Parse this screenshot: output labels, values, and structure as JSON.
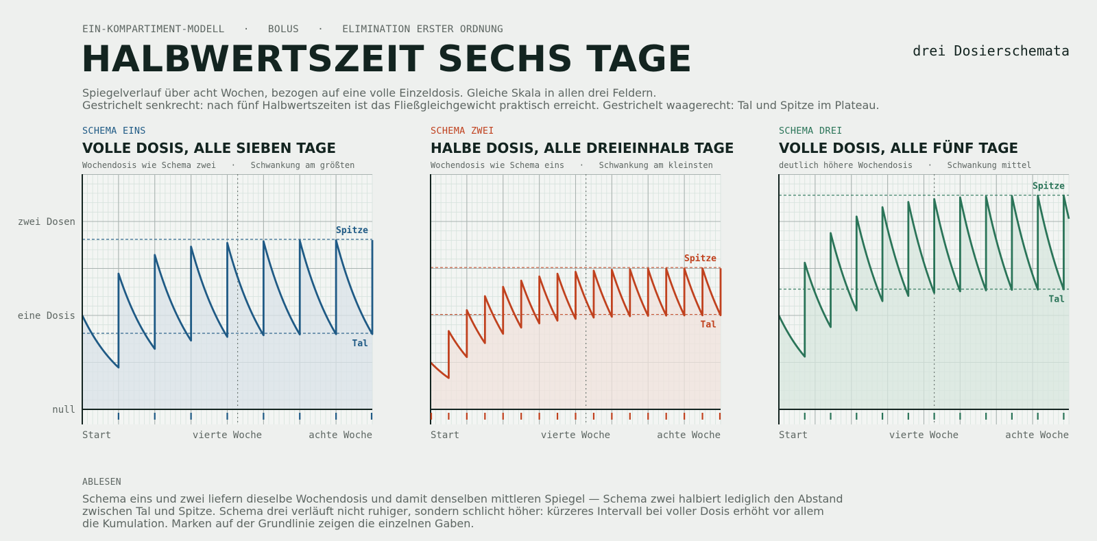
{
  "header": {
    "kicker": "EIN-KOMPARTIMENT-MODELL   ·   BOLUS   ·   ELIMINATION ERSTER ORDNUNG",
    "title": "HALBWERTSZEIT SECHS TAGE",
    "subtitle_right": "drei Dosierschemata",
    "intro_line1": "Spiegelverlauf über acht Wochen, bezogen auf eine volle Einzeldosis. Gleiche Skala in allen drei Feldern.",
    "intro_line2": "Gestrichelt senkrecht: nach fünf Halbwertszeiten ist das Fließgleichgewicht praktisch erreicht.  Gestrichelt waagerecht: Tal und Spitze im Plateau."
  },
  "panels": [
    {
      "kicker": "SCHEMA EINS",
      "title": "VOLLE DOSIS, ALLE SIEBEN TAGE",
      "note": "Wochendosis wie Schema zwei   ·   Schwankung am größten",
      "color": "#1f5a85",
      "fill": "#d9e2e8",
      "peak_label": "Spitze",
      "trough_label": "Tal"
    },
    {
      "kicker": "SCHEMA ZWEI",
      "title": "HALBE DOSIS, ALLE DREIEINHALB TAGE",
      "note": "Wochendosis wie Schema eins   ·   Schwankung am kleinsten",
      "color": "#c0411e",
      "fill": "#f0e1dc",
      "peak_label": "Spitze",
      "trough_label": "Tal"
    },
    {
      "kicker": "SCHEMA DREI",
      "title": "VOLLE DOSIS, ALLE FÜNF TAGE",
      "note": "deutlich höhere Wochendosis   ·   Schwankung mittel",
      "color": "#2a7458",
      "fill": "#d7e6dd",
      "peak_label": "Spitze",
      "trough_label": "Tal"
    }
  ],
  "axes": {
    "y_tick_labels": [
      "null",
      "eine Dosis",
      "zwei Dosen"
    ],
    "x_tick_labels": [
      "Start",
      "vierte Woche",
      "achte Woche"
    ]
  },
  "footer": {
    "label": "ABLESEN",
    "line1": "Schema eins und zwei liefern dieselbe Wochendosis und damit denselben mittleren Spiegel — Schema zwei halbiert lediglich den Abstand",
    "line2": "zwischen Tal und Spitze. Schema drei verläuft nicht ruhiger, sondern schlicht höher: kürzeres Intervall bei voller Dosis erhöht vor allem",
    "line3": "die Kumulation. Marken auf der Grundlinie zeigen die einzelnen Gaben."
  },
  "chart_data": [
    {
      "type": "line",
      "title": "VOLLE DOSIS, ALLE SIEBEN TAGE",
      "x_unit": "days",
      "xlim": [
        0,
        56
      ],
      "ylim": [
        0,
        2.5
      ],
      "y_ticks": [
        0,
        1,
        2
      ],
      "y_tick_labels": [
        "null",
        "eine Dosis",
        "zwei Dosen"
      ],
      "x_ticks": [
        0,
        28,
        56
      ],
      "x_tick_labels": [
        "Start",
        "vierte Woche",
        "achte Woche"
      ],
      "half_life_days": 6,
      "dose": 1,
      "interval_days": 7,
      "initial_level": 1.0,
      "dose_days": [
        7,
        14,
        21,
        28,
        35,
        42,
        49,
        56
      ],
      "steady_state_marker_day": 30,
      "plateau_peak": 1.81,
      "plateau_trough": 0.81,
      "grid": true
    },
    {
      "type": "line",
      "title": "HALBE DOSIS, ALLE DREIEINHALB TAGE",
      "x_unit": "days",
      "xlim": [
        0,
        56
      ],
      "ylim": [
        0,
        2.5
      ],
      "y_ticks": [
        0,
        1,
        2
      ],
      "x_ticks": [
        0,
        28,
        56
      ],
      "x_tick_labels": [
        "Start",
        "vierte Woche",
        "achte Woche"
      ],
      "half_life_days": 6,
      "dose": 0.5,
      "interval_days": 3.5,
      "initial_level": 0.5,
      "dose_days": [
        0,
        3.5,
        7,
        10.5,
        14,
        17.5,
        21,
        24.5,
        28,
        31.5,
        35,
        38.5,
        42,
        45.5,
        49,
        52.5,
        56
      ],
      "steady_state_marker_day": 30,
      "plateau_peak": 1.51,
      "plateau_trough": 1.01,
      "grid": true
    },
    {
      "type": "line",
      "title": "VOLLE DOSIS, ALLE FÜNF TAGE",
      "x_unit": "days",
      "xlim": [
        0,
        56
      ],
      "ylim": [
        0,
        2.5
      ],
      "y_ticks": [
        0,
        1,
        2
      ],
      "x_ticks": [
        0,
        28,
        56
      ],
      "x_tick_labels": [
        "Start",
        "vierte Woche",
        "achte Woche"
      ],
      "half_life_days": 6,
      "dose": 1,
      "interval_days": 5,
      "initial_level": 1.0,
      "dose_days": [
        5,
        10,
        15,
        20,
        25,
        30,
        35,
        40,
        45,
        50,
        55
      ],
      "steady_state_marker_day": 30,
      "plateau_peak": 2.28,
      "plateau_trough": 1.28,
      "grid": true
    }
  ]
}
